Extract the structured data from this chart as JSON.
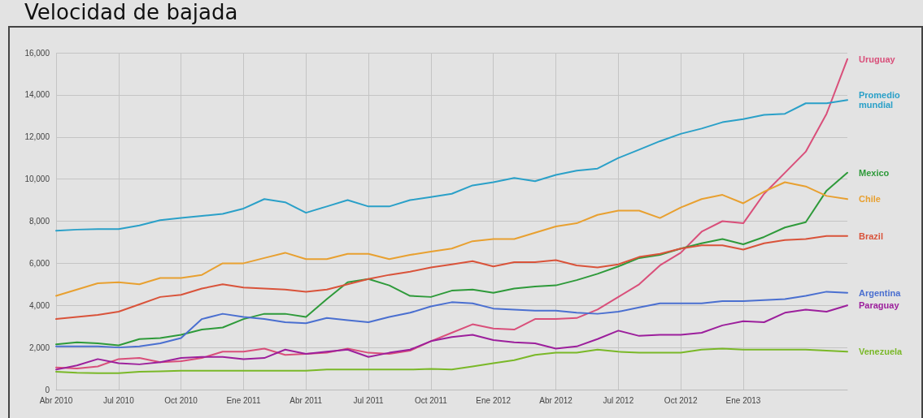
{
  "chart_data": {
    "type": "line",
    "title": "Velocidad de bajada",
    "categories": [
      "Abr 2010",
      null,
      null,
      "Jul 2010",
      null,
      null,
      "Oct 2010",
      null,
      null,
      "Ene 2011",
      null,
      null,
      "Abr 2011",
      null,
      null,
      "Jul 2011",
      null,
      null,
      "Oct 2011",
      null,
      null,
      "Ene 2012",
      null,
      null,
      "Abr 2012",
      null,
      null,
      "Jul 2012",
      null,
      null,
      "Oct 2012",
      null,
      null,
      "Ene 2013",
      null,
      null,
      null,
      null,
      null
    ],
    "series": [
      {
        "name": "Uruguay",
        "color": "#d94f7a",
        "values": [
          1050,
          1000,
          1100,
          1450,
          1500,
          1300,
          1350,
          1500,
          1800,
          1800,
          1950,
          1650,
          1700,
          1750,
          1950,
          1750,
          1700,
          1850,
          2300,
          2700,
          3100,
          2900,
          2850,
          3350,
          3350,
          3400,
          3800,
          4400,
          5000,
          5900,
          6500,
          7500,
          8000,
          7900,
          9300,
          10300,
          11300,
          13100,
          15700
        ]
      },
      {
        "name": "Promedio mundial",
        "color": "#2aa0c8",
        "values": [
          7550,
          7600,
          7620,
          7620,
          7800,
          8050,
          8150,
          8250,
          8350,
          8600,
          9050,
          8900,
          8400,
          8700,
          9000,
          8700,
          8700,
          9000,
          9150,
          9300,
          9700,
          9850,
          10050,
          9900,
          10200,
          10400,
          10500,
          11000,
          11400,
          11800,
          12150,
          12400,
          12700,
          12850,
          13050,
          13100,
          13600,
          13600,
          13750
        ]
      },
      {
        "name": "Mexico",
        "color": "#2e9a3a",
        "values": [
          2150,
          2250,
          2200,
          2100,
          2400,
          2450,
          2600,
          2850,
          2950,
          3350,
          3600,
          3600,
          3450,
          4300,
          5100,
          5250,
          4950,
          4450,
          4400,
          4700,
          4750,
          4600,
          4800,
          4900,
          4950,
          5200,
          5500,
          5850,
          6250,
          6400,
          6700,
          6950,
          7150,
          6900,
          7250,
          7700,
          7950,
          9450,
          10300
        ]
      },
      {
        "name": "Chile",
        "color": "#e8a030",
        "values": [
          4450,
          4750,
          5050,
          5100,
          5000,
          5300,
          5300,
          5450,
          6000,
          6000,
          6250,
          6500,
          6200,
          6200,
          6450,
          6450,
          6200,
          6400,
          6550,
          6700,
          7050,
          7150,
          7150,
          7450,
          7750,
          7900,
          8300,
          8500,
          8500,
          8150,
          8650,
          9050,
          9250,
          8850,
          9400,
          9850,
          9650,
          9200,
          9050
        ]
      },
      {
        "name": "Brazil",
        "color": "#d9533a",
        "values": [
          3350,
          3450,
          3550,
          3700,
          4050,
          4400,
          4500,
          4800,
          5000,
          4850,
          4800,
          4750,
          4650,
          4750,
          5000,
          5250,
          5450,
          5600,
          5800,
          5950,
          6100,
          5850,
          6050,
          6050,
          6150,
          5900,
          5800,
          5950,
          6300,
          6450,
          6700,
          6850,
          6850,
          6650,
          6950,
          7100,
          7150,
          7300,
          7300
        ]
      },
      {
        "name": "Argentina",
        "color": "#4a6fd0",
        "values": [
          2050,
          2050,
          2050,
          2000,
          2050,
          2200,
          2450,
          3350,
          3600,
          3450,
          3350,
          3200,
          3150,
          3400,
          3300,
          3200,
          3450,
          3650,
          3950,
          4150,
          4100,
          3850,
          3800,
          3750,
          3750,
          3650,
          3600,
          3700,
          3900,
          4100,
          4100,
          4100,
          4200,
          4200,
          4250,
          4300,
          4450,
          4650,
          4600
        ]
      },
      {
        "name": "Paraguay",
        "color": "#9c1f9c",
        "values": [
          950,
          1150,
          1450,
          1250,
          1200,
          1300,
          1500,
          1550,
          1550,
          1450,
          1500,
          1900,
          1700,
          1800,
          1900,
          1550,
          1750,
          1900,
          2300,
          2500,
          2600,
          2350,
          2250,
          2200,
          1950,
          2050,
          2400,
          2800,
          2550,
          2600,
          2600,
          2700,
          3050,
          3250,
          3200,
          3650,
          3800,
          3700,
          4000
        ]
      },
      {
        "name": "Venezuela",
        "color": "#7ab828",
        "values": [
          850,
          800,
          780,
          780,
          850,
          870,
          900,
          900,
          900,
          900,
          900,
          900,
          900,
          950,
          950,
          950,
          950,
          950,
          980,
          950,
          1100,
          1250,
          1400,
          1650,
          1750,
          1750,
          1900,
          1800,
          1750,
          1750,
          1750,
          1900,
          1950,
          1900,
          1900,
          1900,
          1900,
          1850,
          1800
        ]
      }
    ],
    "ylim": [
      0,
      16000
    ],
    "yticks": [
      0,
      {
        "value": 2000,
        "label": "2,000"
      },
      {
        "value": 4000,
        "label": "4,000"
      },
      {
        "value": 6000,
        "label": "6,000"
      },
      {
        "value": 8000,
        "label": "8,000"
      },
      {
        "value": 10000,
        "label": "10,000"
      },
      {
        "value": 12000,
        "label": "12,000"
      },
      {
        "value": 14000,
        "label": "14,000"
      },
      {
        "value": 16000,
        "label": "16,000"
      }
    ],
    "grid": true,
    "marker": "none",
    "line_style": "solid"
  }
}
